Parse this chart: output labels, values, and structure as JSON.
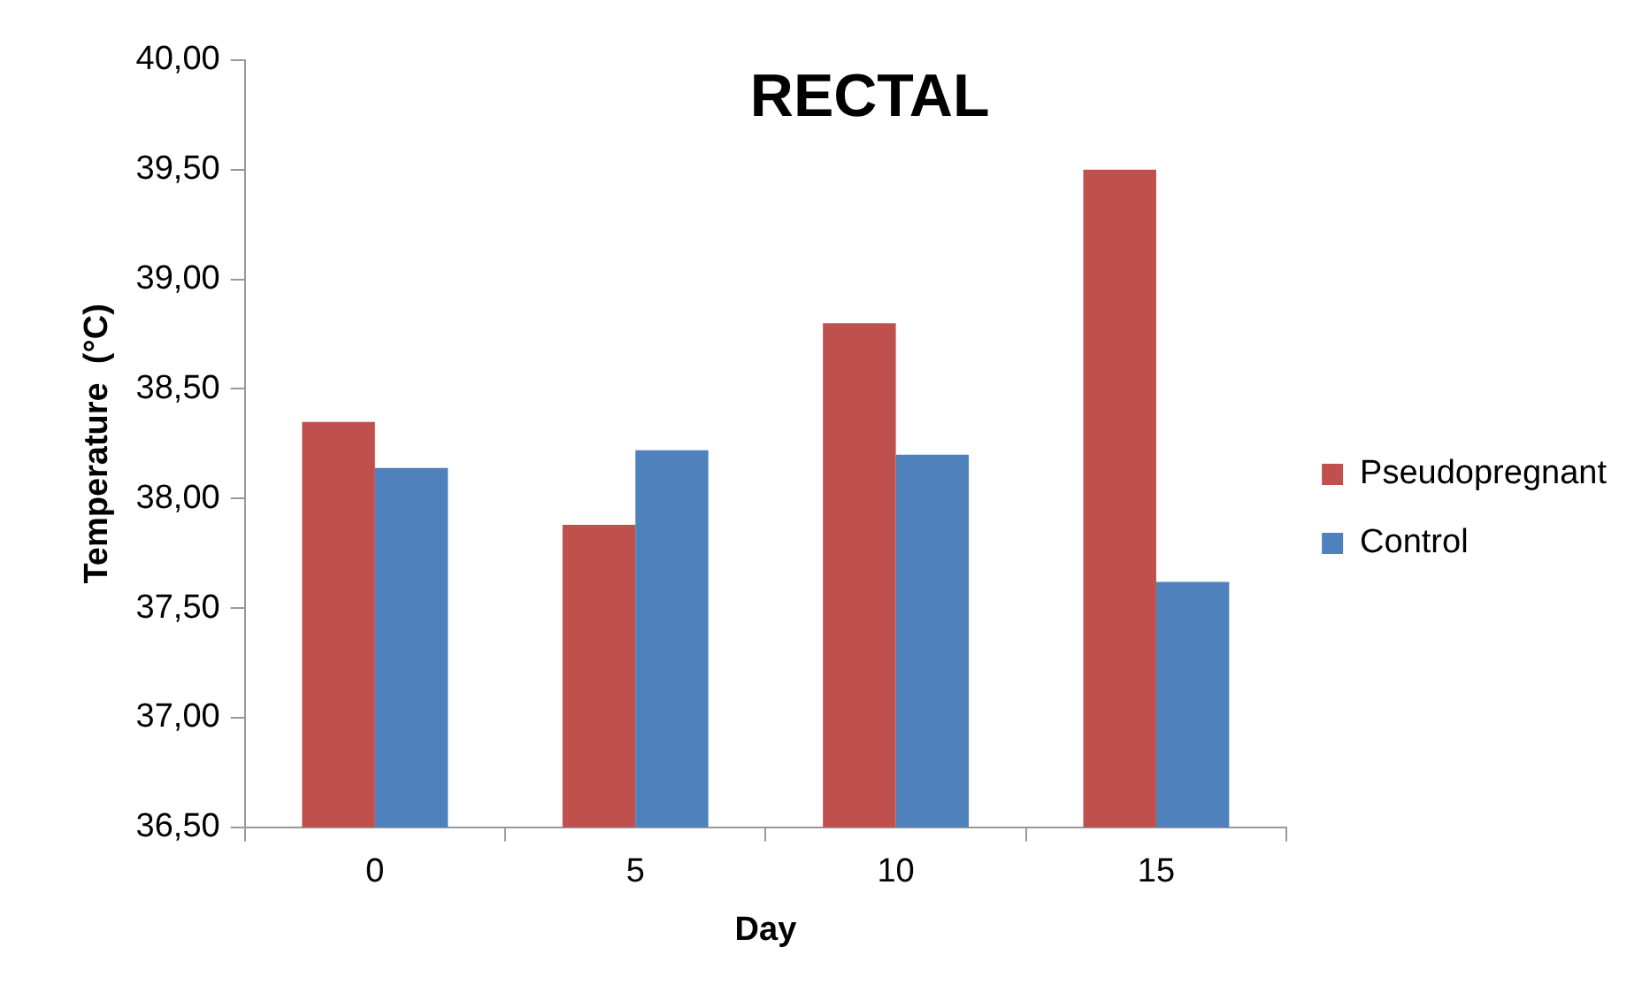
{
  "chart_data": {
    "type": "bar",
    "title": "RECTAL",
    "xlabel": "Day",
    "ylabel": "Temperature  (°C)",
    "categories": [
      "0",
      "5",
      "10",
      "15"
    ],
    "series": [
      {
        "name": "Pseudopregnant",
        "color": "#c0504d",
        "values": [
          38.35,
          37.88,
          38.8,
          39.5
        ]
      },
      {
        "name": "Control",
        "color": "#4f81bd",
        "values": [
          38.14,
          38.22,
          38.2,
          37.62
        ]
      }
    ],
    "ylim": [
      36.5,
      40
    ],
    "yticks": [
      {
        "value": 36.5,
        "label": "36,50"
      },
      {
        "value": 37,
        "label": "37,00"
      },
      {
        "value": 37.5,
        "label": "37,50"
      },
      {
        "value": 38,
        "label": "38,00"
      },
      {
        "value": 38.5,
        "label": "38,50"
      },
      {
        "value": 39,
        "label": "39,00"
      },
      {
        "value": 39.5,
        "label": "39,50"
      },
      {
        "value": 40,
        "label": "40,00"
      }
    ],
    "grid": false,
    "legend": "right"
  }
}
